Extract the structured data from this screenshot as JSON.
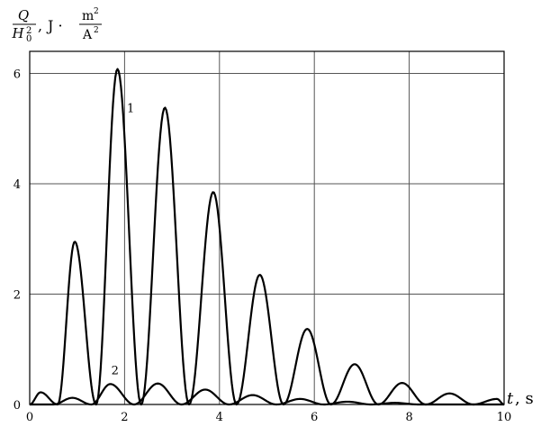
{
  "chart_data": {
    "type": "line",
    "title": "",
    "xlabel": "t, s",
    "ylabel": "Q/H0², J·m²/A²",
    "ylabel_parts": {
      "numerator": "Q",
      "denominator_base": "H",
      "denominator_sub": "0",
      "denominator_sup": "2",
      "separator": ",",
      "unit_prefix": "J ·",
      "unit_numerator": "m",
      "unit_numerator_sup": "2",
      "unit_denominator": "A",
      "unit_denominator_sup": "2"
    },
    "xlabel_parts": {
      "symbol": "t",
      "unit": ", s"
    },
    "xlim": [
      0,
      10
    ],
    "ylim": [
      0,
      6.4
    ],
    "xticks": [
      0,
      2,
      4,
      6,
      8,
      10
    ],
    "yticks": [
      0,
      2,
      4,
      6
    ],
    "xtick_labels": [
      "0",
      "2",
      "4",
      "6",
      "8",
      "10"
    ],
    "ytick_labels": [
      "0",
      "2",
      "4",
      "6"
    ],
    "grid": true,
    "series": [
      {
        "name": "1",
        "peaks": [
          {
            "x": 0.23,
            "y": 0.22
          },
          {
            "x": 0.95,
            "y": 2.95
          },
          {
            "x": 1.85,
            "y": 6.08
          },
          {
            "x": 2.85,
            "y": 5.38
          },
          {
            "x": 3.87,
            "y": 3.85
          },
          {
            "x": 4.85,
            "y": 2.35
          },
          {
            "x": 5.85,
            "y": 1.37
          },
          {
            "x": 6.85,
            "y": 0.73
          },
          {
            "x": 7.85,
            "y": 0.39
          },
          {
            "x": 8.85,
            "y": 0.2
          },
          {
            "x": 9.85,
            "y": 0.1
          }
        ],
        "label_at": {
          "x": 2.05,
          "y": 5.3
        }
      },
      {
        "name": "2",
        "peaks": [
          {
            "x": 0.9,
            "y": 0.12
          },
          {
            "x": 1.7,
            "y": 0.37
          },
          {
            "x": 2.7,
            "y": 0.38
          },
          {
            "x": 3.7,
            "y": 0.27
          },
          {
            "x": 4.7,
            "y": 0.17
          },
          {
            "x": 5.7,
            "y": 0.1
          },
          {
            "x": 6.7,
            "y": 0.05
          },
          {
            "x": 7.7,
            "y": 0.03
          }
        ],
        "label_at": {
          "x": 1.72,
          "y": 0.55
        }
      }
    ]
  }
}
